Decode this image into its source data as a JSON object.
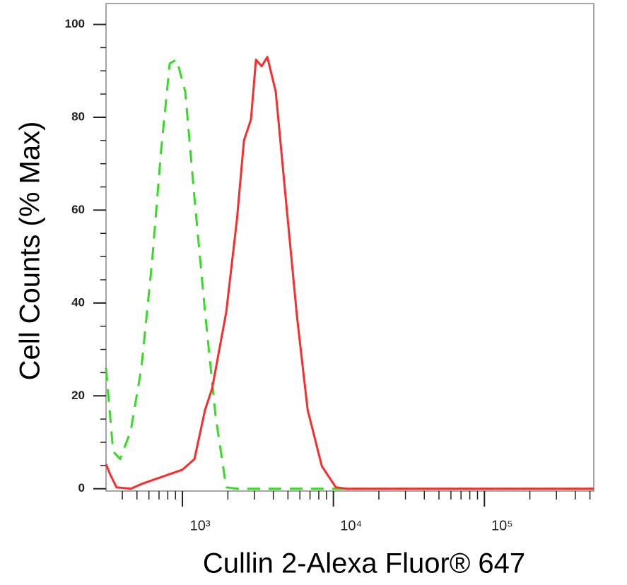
{
  "chart_data": {
    "type": "line",
    "y_label": "Cell Counts (% Max)",
    "x_label": "Cullin 2-Alexa Fluor® 647",
    "x_scale": "log",
    "xlim": [
      312,
      530000
    ],
    "ylim": [
      -0.5,
      104.5
    ],
    "xticks": [
      {
        "value": 1000,
        "label": "10³"
      },
      {
        "value": 10000,
        "label": "10⁴"
      },
      {
        "value": 100000,
        "label": "10⁵"
      }
    ],
    "x_minor_ticks": [
      400,
      500,
      600,
      700,
      800,
      900,
      2000,
      3000,
      4000,
      5000,
      6000,
      7000,
      8000,
      9000,
      20000,
      30000,
      40000,
      50000,
      60000,
      70000,
      80000,
      90000,
      200000,
      300000,
      400000,
      500000
    ],
    "yticks": [
      0,
      20,
      40,
      60,
      80,
      100
    ],
    "y_minor_ticks": [
      5,
      10,
      15,
      25,
      30,
      35,
      45,
      50,
      55,
      65,
      70,
      75,
      85,
      90,
      95
    ],
    "grid": false,
    "series": [
      {
        "color": "#ff2a2a",
        "dash": false,
        "x": [
          312,
          330,
          366,
          455,
          535,
          740,
          1000,
          1202,
          1413,
          1574,
          1950,
          2296,
          2555,
          2844,
          3069,
          3349,
          3652,
          4150,
          4884,
          5742,
          6747,
          8370,
          10380,
          12210,
          530000
        ],
        "values": [
          5.3,
          3.3,
          0.3,
          0,
          1,
          2.6,
          4.1,
          6.4,
          17,
          21.6,
          38,
          58,
          75,
          79.5,
          92.4,
          91,
          93,
          85.5,
          61,
          37,
          17,
          4.9,
          0.3,
          0,
          0
        ]
      },
      {
        "color": "#33dd22",
        "dash": true,
        "x": [
          312,
          348,
          387,
          455,
          535,
          630,
          723,
          824,
          917,
          1044,
          1202,
          1413,
          1660,
          1950,
          2296,
          530000
        ],
        "values": [
          26,
          8,
          6.4,
          12.5,
          26,
          49,
          73,
          91.6,
          92.4,
          85.5,
          62.7,
          38,
          15.5,
          0.3,
          0,
          0
        ]
      }
    ]
  }
}
